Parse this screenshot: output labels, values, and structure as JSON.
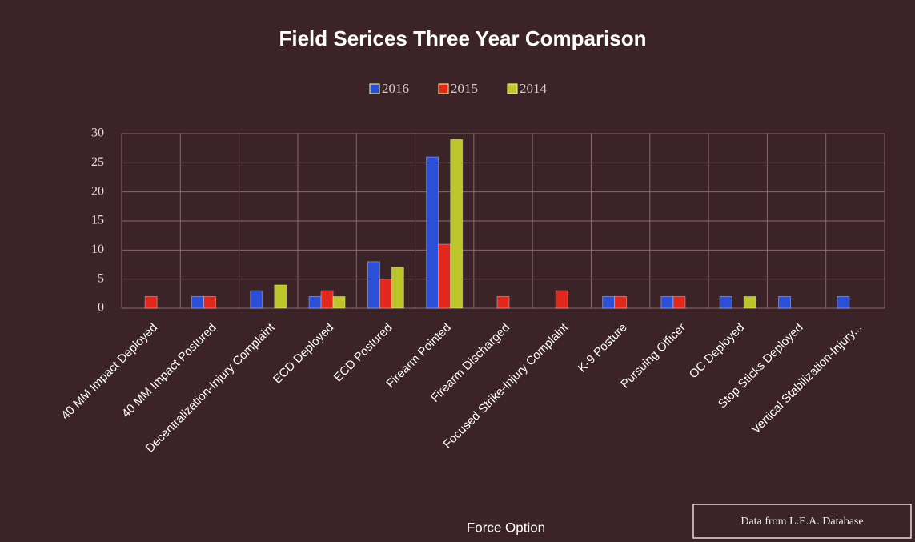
{
  "chart_data": {
    "type": "bar",
    "title": "Field Serices Three Year Comparison",
    "x_label": "Force Option",
    "annotation": "Data from L.E.A. Database",
    "categories": [
      "40 MM Impact Deployed",
      "40 MM Impact Postured",
      "Decentralization-Injury Complaint",
      "ECD Deployed",
      "ECD Postured",
      "Firearm Pointed",
      "Firearm Discharged",
      "Focused Strike-Injury Complaint",
      "K-9 Posture",
      "Pursuing Officer",
      "OC Deployed",
      "Stop Sticks Deployed",
      "Vertical Stabilization-Injury..."
    ],
    "series": [
      {
        "name": "2016",
        "color": "#2b4fd6",
        "values": [
          0,
          2,
          3,
          2,
          8,
          26,
          0,
          0,
          2,
          2,
          2,
          2,
          2
        ]
      },
      {
        "name": "2015",
        "color": "#e2281c",
        "values": [
          2,
          2,
          0,
          3,
          5,
          11,
          2,
          3,
          2,
          2,
          0,
          0,
          0
        ]
      },
      {
        "name": "2014",
        "color": "#bcc62a",
        "values": [
          0,
          0,
          4,
          2,
          7,
          29,
          0,
          0,
          0,
          0,
          2,
          0,
          0
        ]
      }
    ],
    "ylim": [
      0,
      30
    ],
    "yticks": [
      0,
      5,
      10,
      15,
      20,
      25,
      30
    ],
    "grid": true,
    "legend": "top"
  }
}
